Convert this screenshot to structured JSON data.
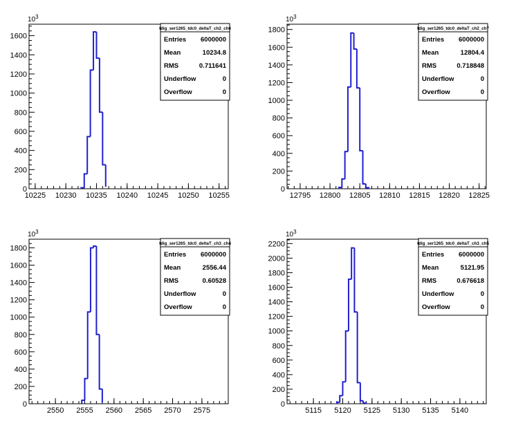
{
  "colors": {
    "hist_line": "#1f1fd0",
    "axis": "#000000",
    "background": "#ffffff"
  },
  "chart_data": [
    {
      "type": "bar",
      "title": "tdig_ser1265_tdc0_deltaT_ch2_ch6",
      "multiplier": "10",
      "multiplier_exp": "3",
      "xlim": [
        10224,
        10256.5
      ],
      "ylim": [
        0,
        1720
      ],
      "xticks": [
        10225,
        10230,
        10235,
        10240,
        10245,
        10250,
        10255
      ],
      "yticks": [
        0,
        200,
        400,
        600,
        800,
        1000,
        1200,
        1400,
        1600
      ],
      "bin_edges": [
        10232.5,
        10233.0,
        10233.5,
        10234.0,
        10234.5,
        10235.0,
        10235.5,
        10236.0,
        10236.5
      ],
      "bin_values": [
        10,
        155,
        545,
        1240,
        1640,
        1365,
        800,
        250,
        20
      ],
      "stats": [
        {
          "label": "Entries",
          "value": "6000000"
        },
        {
          "label": "Mean",
          "value": "10234.8"
        },
        {
          "label": "RMS",
          "value": "0.711641"
        },
        {
          "label": "Underflow",
          "value": "0"
        },
        {
          "label": "Overflow",
          "value": "0"
        }
      ]
    },
    {
      "type": "bar",
      "title": "tdig_ser1265_tdc0_deltaT_ch2_ch7",
      "multiplier": "10",
      "multiplier_exp": "3",
      "xlim": [
        12792.8,
        12826.2
      ],
      "ylim": [
        0,
        1860
      ],
      "xticks": [
        12795,
        12800,
        12805,
        12810,
        12815,
        12820,
        12825
      ],
      "yticks": [
        0,
        200,
        400,
        600,
        800,
        1000,
        1200,
        1400,
        1600,
        1800
      ],
      "bin_edges": [
        12801.5,
        12802.0,
        12802.5,
        12803.0,
        12803.5,
        12804.0,
        12804.5,
        12805.0,
        12805.5,
        12806.0,
        12806.5
      ],
      "bin_values": [
        15,
        110,
        420,
        1150,
        1760,
        1580,
        1140,
        430,
        55,
        12
      ],
      "stats": [
        {
          "label": "Entries",
          "value": "6000000"
        },
        {
          "label": "Mean",
          "value": "12804.4"
        },
        {
          "label": "RMS",
          "value": "0.718848"
        },
        {
          "label": "Underflow",
          "value": "0"
        },
        {
          "label": "Overflow",
          "value": "0"
        }
      ]
    },
    {
      "type": "bar",
      "title": "tdig_ser1265_tdc0_deltaT_ch3_ch4",
      "multiplier": "10",
      "multiplier_exp": "3",
      "xlim": [
        2545.5,
        2579.5
      ],
      "ylim": [
        0,
        1900
      ],
      "xticks": [
        2550,
        2555,
        2560,
        2565,
        2570,
        2575
      ],
      "yticks": [
        0,
        200,
        400,
        600,
        800,
        1000,
        1200,
        1400,
        1600,
        1800
      ],
      "bin_edges": [
        2554.5,
        2555.0,
        2555.5,
        2556.0,
        2556.5,
        2557.0,
        2557.5,
        2558.0
      ],
      "bin_values": [
        40,
        290,
        1060,
        1800,
        1820,
        800,
        170,
        15
      ],
      "stats": [
        {
          "label": "Entries",
          "value": "6000000"
        },
        {
          "label": "Mean",
          "value": "2556.44"
        },
        {
          "label": "RMS",
          "value": "0.60528"
        },
        {
          "label": "Underflow",
          "value": "0"
        },
        {
          "label": "Overflow",
          "value": "0"
        }
      ]
    },
    {
      "type": "bar",
      "title": "tdig_ser1265_tdc0_deltaT_ch3_ch5",
      "multiplier": "10",
      "multiplier_exp": "3",
      "xlim": [
        5110.5,
        5144.5
      ],
      "ylim": [
        0,
        2260
      ],
      "xticks": [
        5115,
        5120,
        5125,
        5130,
        5135,
        5140
      ],
      "yticks": [
        0,
        200,
        400,
        600,
        800,
        1000,
        1200,
        1400,
        1600,
        1800,
        2000,
        2200
      ],
      "bin_edges": [
        5119.0,
        5119.5,
        5120.0,
        5120.5,
        5121.0,
        5121.5,
        5122.0,
        5122.5,
        5123.0,
        5123.5,
        5124.0
      ],
      "bin_values": [
        20,
        110,
        300,
        1000,
        1710,
        2140,
        1260,
        290,
        40,
        10
      ],
      "stats": [
        {
          "label": "Entries",
          "value": "6000000"
        },
        {
          "label": "Mean",
          "value": "5121.95"
        },
        {
          "label": "RMS",
          "value": "0.676618"
        },
        {
          "label": "Underflow",
          "value": "0"
        },
        {
          "label": "Overflow",
          "value": "0"
        }
      ]
    }
  ]
}
